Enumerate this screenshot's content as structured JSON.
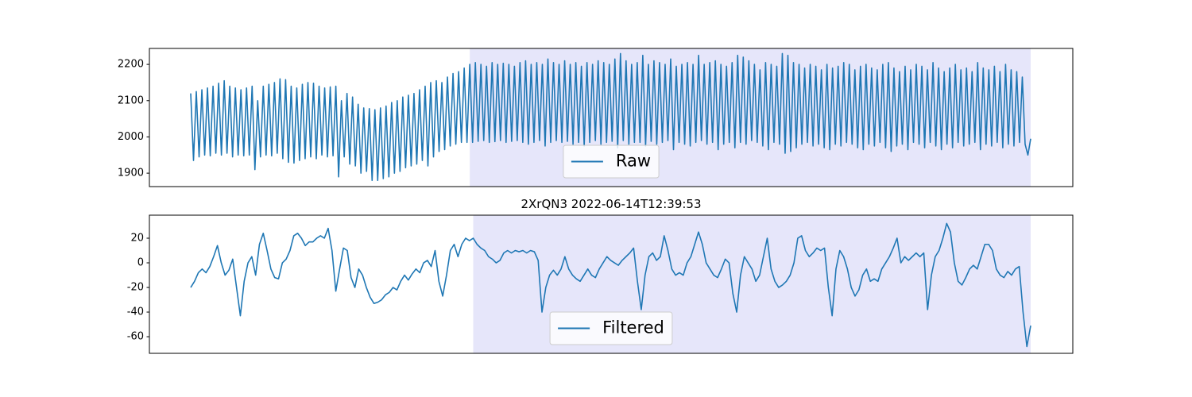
{
  "chart_data": [
    {
      "type": "line",
      "ylim": [
        1863,
        2244
      ],
      "yticks": [
        1900,
        2000,
        2100,
        2200
      ],
      "legend": "lower center",
      "highlight": [
        100,
        301
      ],
      "highlight_color": "#e6e6fa",
      "series": [
        {
          "name": "Raw",
          "color": "#1f77b4",
          "values": [
            2120,
            1935,
            2125,
            1945,
            2130,
            1950,
            2135,
            1948,
            2140,
            1955,
            2148,
            1950,
            2155,
            1955,
            2140,
            1945,
            2135,
            1950,
            2130,
            1948,
            2135,
            1950,
            2140,
            1910,
            2100,
            1945,
            2140,
            1950,
            2145,
            1948,
            2150,
            1955,
            2160,
            1940,
            2158,
            1930,
            2140,
            1928,
            2135,
            1935,
            2145,
            1940,
            2150,
            1945,
            2148,
            1940,
            2140,
            1950,
            2135,
            1945,
            2138,
            1948,
            2140,
            1890,
            2100,
            1945,
            2120,
            1925,
            2110,
            1920,
            2090,
            1900,
            2080,
            1905,
            2078,
            1880,
            2075,
            1880,
            2080,
            1885,
            2085,
            1890,
            2095,
            1900,
            2100,
            1905,
            2110,
            1915,
            2115,
            1920,
            2120,
            1925,
            2130,
            1935,
            2140,
            1920,
            2150,
            1945,
            2155,
            1960,
            2150,
            1965,
            2165,
            1975,
            2175,
            1980,
            2180,
            1985,
            2190,
            1985,
            2200,
            1985,
            2205,
            1988,
            2200,
            1990,
            2195,
            1985,
            2205,
            1987,
            2200,
            1990,
            2203,
            1985,
            2200,
            1988,
            2195,
            1990,
            2205,
            1985,
            2210,
            1980,
            2200,
            1985,
            2205,
            1990,
            2200,
            1975,
            2215,
            1985,
            2205,
            1990,
            2200,
            1985,
            2210,
            1988,
            2200,
            1980,
            2205,
            1985,
            2195,
            1975,
            2205,
            1985,
            2200,
            1990,
            2210,
            1980,
            2205,
            1985,
            2200,
            1988,
            2215,
            1970,
            2230,
            1990,
            2210,
            1980,
            2200,
            1985,
            2205,
            1985,
            2225,
            1975,
            2200,
            1988,
            2210,
            1980,
            2205,
            1985,
            2200,
            1990,
            2215,
            1965,
            2195,
            1985,
            2200,
            1980,
            2205,
            1975,
            2200,
            1985,
            2225,
            1990,
            2200,
            1980,
            2205,
            1985,
            2210,
            1965,
            2200,
            1980,
            2195,
            1985,
            2205,
            1970,
            2225,
            1985,
            2220,
            1980,
            2210,
            1990,
            2200,
            1985,
            2185,
            1975,
            2205,
            1965,
            2200,
            1985,
            2195,
            1980,
            2230,
            1955,
            2225,
            1960,
            2205,
            1970,
            2200,
            1980,
            2190,
            1985,
            2200,
            1975,
            2195,
            1980,
            2185,
            1970,
            2200,
            1965,
            2190,
            1980,
            2195,
            1975,
            2205,
            1985,
            2200,
            1980,
            2185,
            1970,
            2195,
            1965,
            2200,
            1980,
            2190,
            1975,
            2185,
            1985,
            2200,
            1970,
            2205,
            1960,
            2190,
            1975,
            2180,
            1980,
            2195,
            1965,
            2185,
            1985,
            2200,
            1980,
            2195,
            1970,
            2185,
            1985,
            2205,
            1975,
            2190,
            1965,
            2180,
            1980,
            2190,
            1970,
            2200,
            1985,
            2185,
            1975,
            2190,
            1980,
            2180,
            1985,
            2205,
            1965,
            2190,
            1980,
            2185,
            1975,
            2195,
            1985,
            2180,
            1970,
            2200,
            1980,
            2185,
            1975,
            2180,
            1985,
            2165,
            1980,
            1950,
            1995
          ]
        }
      ]
    },
    {
      "type": "line",
      "title": "2XrQN3 2022-06-14T12:39:53",
      "ylim": [
        -73.5,
        38.7
      ],
      "yticks": [
        -60,
        -40,
        -20,
        0,
        20
      ],
      "legend": "lower center",
      "highlight": [
        74,
        220
      ],
      "highlight_color": "#e6e6fa",
      "series": [
        {
          "name": "Filtered",
          "color": "#1f77b4",
          "values": [
            -20,
            -15,
            -8,
            -5,
            -8,
            -3,
            5,
            14,
            0,
            -10,
            -6,
            3,
            -20,
            -43,
            -15,
            0,
            5,
            -10,
            15,
            24,
            10,
            -5,
            -12,
            -13,
            0,
            3,
            10,
            22,
            24,
            20,
            14,
            17,
            17,
            20,
            22,
            20,
            28,
            10,
            -23,
            -5,
            12,
            10,
            -12,
            -20,
            -5,
            -10,
            -20,
            -28,
            -33,
            -32,
            -30,
            -26,
            -24,
            -20,
            -22,
            -15,
            -10,
            -14,
            -9,
            -5,
            -8,
            0,
            2,
            -3,
            10,
            -15,
            -27,
            -10,
            10,
            15,
            5,
            15,
            20,
            18,
            20,
            15,
            12,
            10,
            5,
            3,
            0,
            2,
            8,
            10,
            8,
            10,
            9,
            10,
            8,
            10,
            9,
            2,
            -40,
            -20,
            -10,
            -6,
            -10,
            -5,
            5,
            -5,
            -10,
            -13,
            -15,
            -10,
            -5,
            -10,
            -12,
            -5,
            0,
            5,
            2,
            0,
            -2,
            2,
            5,
            8,
            12,
            -15,
            -38,
            -10,
            5,
            8,
            2,
            5,
            22,
            10,
            -5,
            -10,
            -8,
            -10,
            0,
            5,
            15,
            25,
            15,
            0,
            -5,
            -10,
            -12,
            -5,
            3,
            0,
            -25,
            -40,
            -10,
            5,
            0,
            -5,
            -15,
            -10,
            5,
            20,
            -5,
            -15,
            -20,
            -18,
            -15,
            -10,
            0,
            20,
            22,
            10,
            5,
            8,
            12,
            10,
            12,
            -20,
            -43,
            -5,
            10,
            5,
            -5,
            -20,
            -27,
            -22,
            -10,
            -5,
            -15,
            -13,
            -15,
            -5,
            0,
            5,
            12,
            20,
            0,
            5,
            2,
            5,
            8,
            5,
            8,
            -38,
            -10,
            5,
            10,
            20,
            32,
            25,
            0,
            -15,
            -18,
            -12,
            -5,
            -2,
            -5,
            5,
            15,
            15,
            10,
            -5,
            -10,
            -12,
            -7,
            -10,
            -5,
            -3,
            -40,
            -68,
            -51
          ]
        }
      ]
    }
  ]
}
